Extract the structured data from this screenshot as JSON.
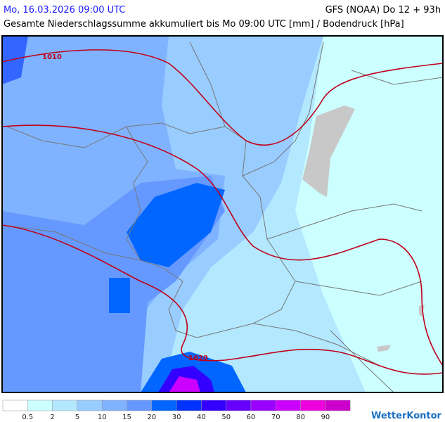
{
  "header": {
    "date": "Mo, 16.03.2026 09:00 UTC",
    "model": "GFS (NOAA) Do 12 + 93h",
    "subtitle": "Gesamte Niederschlagssumme akkumuliert bis Mo 09:00 UTC [mm] / Bodendruck [hPa]"
  },
  "isobars": [
    {
      "label": "1010"
    },
    {
      "label": "1020"
    }
  ],
  "legend": {
    "labels": [
      "0.5",
      "2",
      "5",
      "10",
      "15",
      "20",
      "30",
      "40",
      "50",
      "60",
      "70",
      "80",
      "90"
    ],
    "colors": [
      "#ffffff",
      "#ccffff",
      "#b3e8ff",
      "#99ccff",
      "#80b3ff",
      "#6699ff",
      "#0066ff",
      "#0033ff",
      "#3300ff",
      "#6600ff",
      "#9900ff",
      "#cc00ff",
      "#ee00dd",
      "#cc00cc"
    ]
  },
  "logo": "WetterKontor"
}
